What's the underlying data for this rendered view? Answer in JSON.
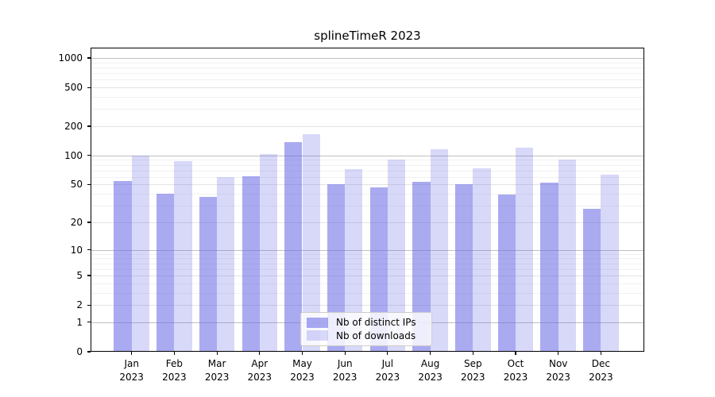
{
  "chart_data": {
    "type": "bar",
    "title": "splineTimeR 2023",
    "categories": [
      "Jan",
      "Feb",
      "Mar",
      "Apr",
      "May",
      "Jun",
      "Jul",
      "Aug",
      "Sep",
      "Oct",
      "Nov",
      "Dec"
    ],
    "x_year_label": "2023",
    "series": [
      {
        "name": "Nb of distinct IPs",
        "color": "rgba(100,100,230,0.55)",
        "color_hex_on_white": "#AAAAF1",
        "values": [
          54,
          40,
          37,
          61,
          137,
          50,
          47,
          53,
          50,
          39,
          52,
          28
        ]
      },
      {
        "name": "Nb of downloads",
        "color": "rgba(100,100,230,0.25)",
        "color_hex_on_white": "#D8D8F9",
        "values": [
          100,
          88,
          60,
          103,
          166,
          72,
          90,
          116,
          74,
          121,
          90,
          63
        ]
      }
    ],
    "y_axis": {
      "scale": "log1p",
      "ticks": [
        0,
        1,
        2,
        5,
        10,
        20,
        50,
        100,
        200,
        500,
        1000
      ]
    },
    "legend": {
      "position": "lower center inside"
    },
    "grid": true
  }
}
